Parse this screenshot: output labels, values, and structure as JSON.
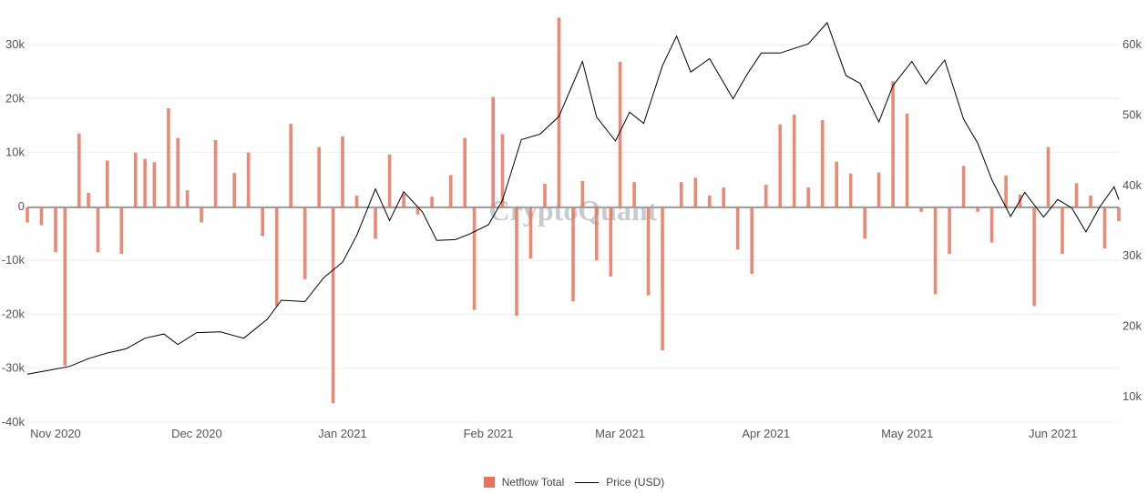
{
  "chart_data": {
    "type": "bar",
    "watermark": "CryptoQuant",
    "x_ticks": [
      "Nov 2020",
      "Dec 2020",
      "Jan 2021",
      "Feb 2021",
      "Mar 2021",
      "Apr 2021",
      "May 2021",
      "Jun 2021"
    ],
    "y_left": {
      "ticks": [
        "30k",
        "20k",
        "10k",
        "0",
        "-10k",
        "-20k",
        "-30k",
        "-40k"
      ],
      "range": [
        -40000,
        36000
      ]
    },
    "y_right": {
      "ticks": [
        "60k",
        "50k",
        "40k",
        "30k",
        "20k",
        "10k"
      ],
      "range": [
        6000,
        64000
      ]
    },
    "grid": true,
    "legend_position": "bottom-center",
    "series": [
      {
        "name": "Netflow Total",
        "type": "bar",
        "color": "#e8745f",
        "x": [
          "2020-10-26",
          "2020-10-29",
          "2020-11-01",
          "2020-11-03",
          "2020-11-06",
          "2020-11-08",
          "2020-11-10",
          "2020-11-12",
          "2020-11-15",
          "2020-11-18",
          "2020-11-20",
          "2020-11-22",
          "2020-11-25",
          "2020-11-27",
          "2020-11-29",
          "2020-12-02",
          "2020-12-05",
          "2020-12-09",
          "2020-12-12",
          "2020-12-15",
          "2020-12-18",
          "2020-12-21",
          "2020-12-24",
          "2020-12-27",
          "2020-12-30",
          "2021-01-01",
          "2021-01-04",
          "2021-01-08",
          "2021-01-11",
          "2021-01-14",
          "2021-01-17",
          "2021-01-20",
          "2021-01-24",
          "2021-01-27",
          "2021-01-29",
          "2021-02-02",
          "2021-02-04",
          "2021-02-07",
          "2021-02-10",
          "2021-02-13",
          "2021-02-16",
          "2021-02-19",
          "2021-02-21",
          "2021-02-24",
          "2021-02-27",
          "2021-03-01",
          "2021-03-04",
          "2021-03-07",
          "2021-03-10",
          "2021-03-14",
          "2021-03-17",
          "2021-03-20",
          "2021-03-23",
          "2021-03-26",
          "2021-03-29",
          "2021-04-01",
          "2021-04-04",
          "2021-04-07",
          "2021-04-10",
          "2021-04-13",
          "2021-04-16",
          "2021-04-19",
          "2021-04-22",
          "2021-04-25",
          "2021-04-28",
          "2021-05-01",
          "2021-05-04",
          "2021-05-07",
          "2021-05-10",
          "2021-05-13",
          "2021-05-16",
          "2021-05-19",
          "2021-05-22",
          "2021-05-25",
          "2021-05-28",
          "2021-05-31",
          "2021-06-03",
          "2021-06-06",
          "2021-06-09",
          "2021-06-12",
          "2021-06-15"
        ],
        "values": [
          -3000,
          -3500,
          -8500,
          -29500,
          13500,
          2500,
          -8500,
          8500,
          -8800,
          10000,
          8800,
          8200,
          18200,
          12700,
          3000,
          -3000,
          12300,
          6200,
          10000,
          -5500,
          -18500,
          15300,
          -13500,
          11000,
          -36500,
          13000,
          2000,
          -6000,
          9600,
          2300,
          -1500,
          1800,
          5800,
          12700,
          -19200,
          20300,
          13400,
          -20300,
          -9700,
          4200,
          35000,
          -17600,
          4700,
          -10000,
          -13000,
          26800,
          4500,
          -16500,
          -26700,
          4500,
          5300,
          2000,
          3500,
          -8000,
          -12500,
          4000,
          15200,
          17000,
          3500,
          16000,
          8300,
          6100,
          -6000,
          6300,
          23200,
          17200,
          -1000,
          -16300,
          -8800,
          7500,
          -1000,
          -6700,
          5700,
          2200,
          -18500,
          11000,
          -8800,
          4300,
          2000,
          -7800,
          -2700
        ]
      },
      {
        "name": "Price (USD)",
        "type": "line",
        "color": "#000000",
        "x": [
          "2020-10-26",
          "2020-10-31",
          "2020-11-04",
          "2020-11-08",
          "2020-11-12",
          "2020-11-16",
          "2020-11-20",
          "2020-11-24",
          "2020-11-27",
          "2020-12-01",
          "2020-12-06",
          "2020-12-11",
          "2020-12-16",
          "2020-12-19",
          "2020-12-24",
          "2020-12-28",
          "2021-01-01",
          "2021-01-04",
          "2021-01-08",
          "2021-01-11",
          "2021-01-14",
          "2021-01-18",
          "2021-01-21",
          "2021-01-25",
          "2021-01-28",
          "2021-02-01",
          "2021-02-04",
          "2021-02-08",
          "2021-02-12",
          "2021-02-16",
          "2021-02-21",
          "2021-02-24",
          "2021-02-28",
          "2021-03-03",
          "2021-03-06",
          "2021-03-10",
          "2021-03-13",
          "2021-03-16",
          "2021-03-20",
          "2021-03-25",
          "2021-03-28",
          "2021-03-31",
          "2021-04-04",
          "2021-04-10",
          "2021-04-14",
          "2021-04-18",
          "2021-04-21",
          "2021-04-25",
          "2021-04-28",
          "2021-05-02",
          "2021-05-05",
          "2021-05-09",
          "2021-05-13",
          "2021-05-16",
          "2021-05-19",
          "2021-05-23",
          "2021-05-26",
          "2021-05-30",
          "2021-06-02",
          "2021-06-05",
          "2021-06-08",
          "2021-06-11",
          "2021-06-14",
          "2021-06-15"
        ],
        "values": [
          13200,
          13800,
          14300,
          15400,
          16200,
          16800,
          18300,
          18900,
          17400,
          19100,
          19200,
          18300,
          21000,
          23700,
          23500,
          26900,
          29100,
          32900,
          39500,
          35000,
          39100,
          36200,
          32200,
          32300,
          33100,
          34400,
          37900,
          46500,
          47300,
          49800,
          57600,
          49700,
          46300,
          50400,
          48800,
          57000,
          61200,
          56100,
          58000,
          52300,
          55800,
          58800,
          58800,
          60100,
          63100,
          55600,
          54500,
          49000,
          54200,
          57600,
          54400,
          57800,
          49400,
          46000,
          40800,
          35600,
          39000,
          35500,
          38000,
          36800,
          33400,
          37000,
          39800,
          38000
        ]
      }
    ]
  }
}
